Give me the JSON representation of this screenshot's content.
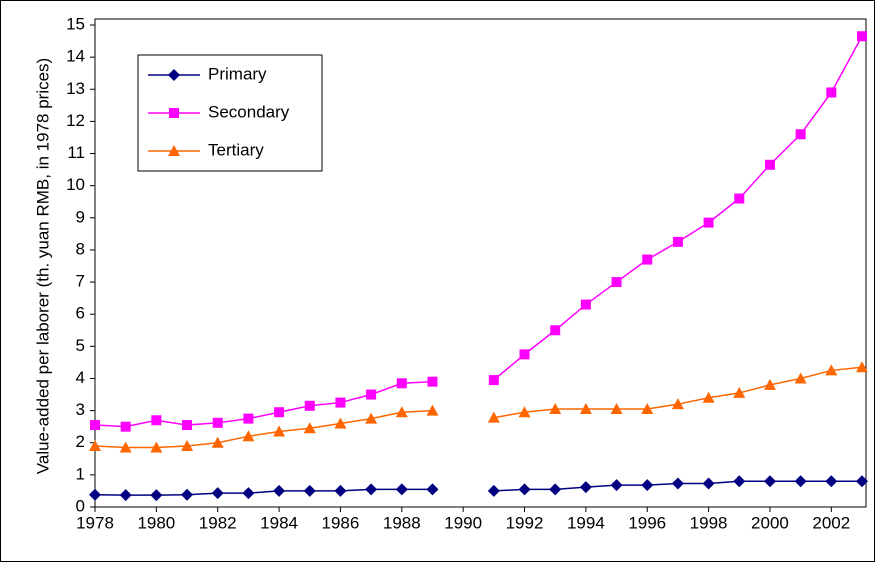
{
  "chart_data": {
    "type": "line",
    "y_label": "Value-added per laborer (th. yuan RMB, in 1978 prices)",
    "x": [
      1978,
      1979,
      1980,
      1981,
      1982,
      1983,
      1984,
      1985,
      1986,
      1987,
      1988,
      1989,
      1990,
      1991,
      1992,
      1993,
      1994,
      1995,
      1996,
      1997,
      1998,
      1999,
      2000,
      2001,
      2002,
      2003
    ],
    "series": [
      {
        "name": "Primary",
        "color": "#000080",
        "marker": "diamond",
        "values": [
          0.38,
          0.37,
          0.37,
          0.38,
          0.43,
          0.43,
          0.5,
          0.5,
          0.5,
          0.55,
          0.55,
          0.55,
          null,
          0.5,
          0.55,
          0.55,
          0.62,
          0.68,
          0.68,
          0.73,
          0.73,
          0.8,
          0.8,
          0.8,
          0.8,
          0.8
        ]
      },
      {
        "name": "Secondary",
        "color": "#ff00ff",
        "marker": "square",
        "values": [
          2.55,
          2.5,
          2.7,
          2.55,
          2.62,
          2.75,
          2.95,
          3.15,
          3.25,
          3.5,
          3.85,
          3.9,
          null,
          3.95,
          4.75,
          5.5,
          6.3,
          7.0,
          7.7,
          8.25,
          8.85,
          9.6,
          10.65,
          11.6,
          12.9,
          14.65
        ]
      },
      {
        "name": "Tertiary",
        "color": "#ff6600",
        "marker": "triangle",
        "values": [
          1.9,
          1.85,
          1.85,
          1.9,
          2.0,
          2.2,
          2.35,
          2.45,
          2.6,
          2.75,
          2.95,
          3.0,
          null,
          2.78,
          2.95,
          3.05,
          3.05,
          3.05,
          3.05,
          3.2,
          3.4,
          3.55,
          3.8,
          4.0,
          4.25,
          4.35
        ]
      }
    ],
    "xlim": [
      1978,
      2003
    ],
    "xticks": [
      1978,
      1980,
      1982,
      1984,
      1986,
      1988,
      1990,
      1992,
      1994,
      1996,
      1998,
      2000,
      2002
    ],
    "ylim": [
      0,
      15
    ],
    "yticks": [
      0,
      1,
      2,
      3,
      4,
      5,
      6,
      7,
      8,
      9,
      10,
      11,
      12,
      13,
      14,
      15
    ],
    "grid": false,
    "legend": "top-left"
  }
}
